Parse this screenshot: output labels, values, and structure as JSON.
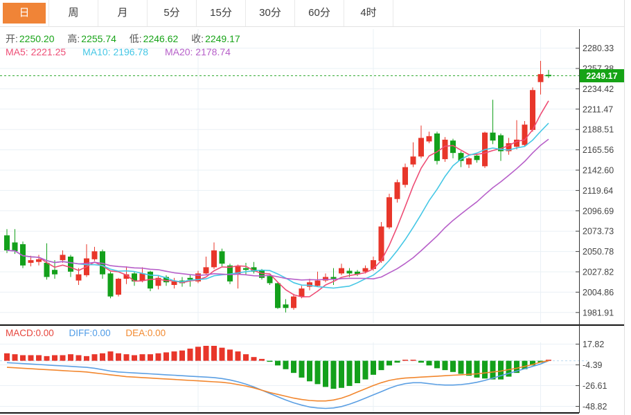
{
  "tabs": {
    "items": [
      {
        "label": "日",
        "active": true
      },
      {
        "label": "周",
        "active": false
      },
      {
        "label": "月",
        "active": false
      },
      {
        "label": "5分",
        "active": false
      },
      {
        "label": "15分",
        "active": false
      },
      {
        "label": "30分",
        "active": false
      },
      {
        "label": "60分",
        "active": false
      },
      {
        "label": "4时",
        "active": false
      }
    ]
  },
  "quote_legend": {
    "items": [
      {
        "label": "开:",
        "value": "2250.20"
      },
      {
        "label": "高:",
        "value": "2255.74"
      },
      {
        "label": "低:",
        "value": "2246.62"
      },
      {
        "label": "收:",
        "value": "2249.17"
      }
    ]
  },
  "ma_legend": {
    "items": [
      {
        "label": "MA5:",
        "value": "2221.25"
      },
      {
        "label": "MA10:",
        "value": "2196.78"
      },
      {
        "label": "MA20:",
        "value": "2178.74"
      }
    ]
  },
  "macd_legend": {
    "items": [
      {
        "label": "MACD:",
        "value": "0.00"
      },
      {
        "label": "DIFF:",
        "value": "0.00"
      },
      {
        "label": "DEA:",
        "value": "0.00"
      }
    ]
  },
  "colors": {
    "up": "#e8362a",
    "down": "#13a01b",
    "ma5": "#ee4d75",
    "ma10": "#45c7e5",
    "ma20": "#b75fc9",
    "diff_line": "#5b9fe3",
    "dea_line": "#f2862d",
    "macd_label": "#e6453c",
    "diff_label": "#4f9be6",
    "dea_label": "#f28a30",
    "quote_label": "#565656",
    "quote_value": "#17a317",
    "price_tag_bg": "#16a316",
    "price_line": "#33aa33",
    "tab_active_bg": "#f08437",
    "tab_active_text": "#ffffff",
    "grid": "#eaf0f6",
    "axis": "#333333",
    "axis_text": "#444444",
    "separator": "#151515",
    "zero_dash": "#bcd9ef"
  },
  "chart_data": [
    {
      "type": "candlestick",
      "title": "daily-kline-gold",
      "legend": [
        "MA5",
        "MA10",
        "MA20"
      ],
      "grid": true,
      "y_axis_side": "right",
      "y_ticks": [
        "2280.33",
        "2257.38",
        "2234.42",
        "2211.47",
        "2188.51",
        "2165.56",
        "2142.60",
        "2119.64",
        "2096.69",
        "2073.73",
        "2050.78",
        "2027.82",
        "2004.86",
        "1981.91"
      ],
      "y_range": [
        1975.0,
        2287.0
      ],
      "current_price": 2249.17,
      "current_price_label": "2249.17",
      "ma_periods": [
        5,
        10,
        20
      ],
      "ma_current": {
        "ma5": "2221.25",
        "ma10": "2196.78",
        "ma20": "2178.74"
      },
      "x_gridline_indices": [
        24,
        46,
        67
      ],
      "ohlc": [
        [
          2069,
          2076,
          2049,
          2052
        ],
        [
          2061,
          2076,
          2048,
          2051
        ],
        [
          2059,
          2062,
          2032,
          2035
        ],
        [
          2038,
          2046,
          2034,
          2041
        ],
        [
          2039,
          2047,
          2035,
          2042
        ],
        [
          2038,
          2060,
          2019,
          2022
        ],
        [
          2030,
          2041,
          2020,
          2025
        ],
        [
          2041,
          2052,
          2038,
          2047
        ],
        [
          2045,
          2047,
          2022,
          2028
        ],
        [
          2018,
          2032,
          2013,
          2025
        ],
        [
          2024,
          2059,
          2022,
          2043
        ],
        [
          2042,
          2056,
          2040,
          2051
        ],
        [
          2051,
          2053,
          2020,
          2025
        ],
        [
          2026,
          2028,
          1998,
          2000
        ],
        [
          2002,
          2021,
          2000,
          2020
        ],
        [
          2020,
          2034,
          2014,
          2025
        ],
        [
          2026,
          2028,
          2012,
          2017
        ],
        [
          2018,
          2033,
          2016,
          2026
        ],
        [
          2028,
          2029,
          2006,
          2009
        ],
        [
          2012,
          2023,
          2008,
          2021
        ],
        [
          2022,
          2024,
          2012,
          2016
        ],
        [
          2013,
          2021,
          2009,
          2017
        ],
        [
          2018,
          2022,
          2011,
          2015
        ],
        [
          2021,
          2025,
          2011,
          2019
        ],
        [
          2017,
          2029,
          2015,
          2026
        ],
        [
          2026,
          2045,
          2024,
          2033
        ],
        [
          2033,
          2061,
          2031,
          2052
        ],
        [
          2051,
          2054,
          2034,
          2037
        ],
        [
          2035,
          2037,
          2014,
          2017
        ],
        [
          2025,
          2036,
          2009,
          2034
        ],
        [
          2032,
          2038,
          2025,
          2030
        ],
        [
          2033,
          2039,
          2026,
          2028
        ],
        [
          2029,
          2031,
          2019,
          2021
        ],
        [
          2023,
          2024,
          2013,
          2015
        ],
        [
          2015,
          2016,
          1986,
          1987
        ],
        [
          1991,
          1997,
          1982,
          1987
        ],
        [
          1987,
          2003,
          1985,
          2000
        ],
        [
          2000,
          2012,
          1998,
          2009
        ],
        [
          2011,
          2020,
          2007,
          2016
        ],
        [
          2012,
          2028,
          2011,
          2018
        ],
        [
          2018,
          2026,
          2016,
          2022
        ],
        [
          2022,
          2032,
          2013,
          2020
        ],
        [
          2026,
          2037,
          2024,
          2032
        ],
        [
          2029,
          2032,
          2022,
          2026
        ],
        [
          2028,
          2030,
          2023,
          2025
        ],
        [
          2028,
          2035,
          2026,
          2032
        ],
        [
          2031,
          2045,
          2029,
          2041
        ],
        [
          2040,
          2084,
          2038,
          2079
        ],
        [
          2078,
          2116,
          2076,
          2112
        ],
        [
          2110,
          2132,
          2106,
          2129
        ],
        [
          2126,
          2150,
          2123,
          2146
        ],
        [
          2149,
          2174,
          2146,
          2158
        ],
        [
          2158,
          2193,
          2156,
          2179
        ],
        [
          2175,
          2186,
          2173,
          2181
        ],
        [
          2184,
          2186,
          2149,
          2153
        ],
        [
          2155,
          2180,
          2152,
          2177
        ],
        [
          2176,
          2178,
          2156,
          2162
        ],
        [
          2162,
          2164,
          2146,
          2153
        ],
        [
          2149,
          2157,
          2145,
          2156
        ],
        [
          2159,
          2161,
          2151,
          2154
        ],
        [
          2147,
          2186,
          2145,
          2185
        ],
        [
          2185,
          2222,
          2172,
          2176
        ],
        [
          2182,
          2184,
          2153,
          2164
        ],
        [
          2164,
          2179,
          2160,
          2173
        ],
        [
          2169,
          2199,
          2166,
          2177
        ],
        [
          2171,
          2198,
          2169,
          2194
        ],
        [
          2188,
          2236,
          2186,
          2233
        ],
        [
          2242,
          2266,
          2228,
          2251
        ],
        [
          2250.2,
          2255.74,
          2246.62,
          2249.17
        ]
      ]
    },
    {
      "type": "macd",
      "title": "macd-panel",
      "y_ticks": [
        "17.82",
        "-4.39",
        "-26.61",
        "-48.82"
      ],
      "y_tick_values": [
        17.82,
        -4.39,
        -26.61,
        -48.82
      ],
      "current": {
        "macd": "0.00",
        "diff": "0.00",
        "dea": "0.00"
      },
      "histogram": [
        8,
        7,
        6,
        6,
        6,
        5,
        6,
        6,
        7,
        6,
        5,
        7,
        8,
        10,
        8,
        7,
        6,
        7,
        7,
        8,
        9,
        10,
        11,
        13,
        15,
        16,
        16,
        14,
        12,
        10,
        7,
        4,
        2,
        -1,
        -5,
        -9,
        -13,
        -18,
        -22,
        -25,
        -28,
        -30,
        -29,
        -27,
        -24,
        -20,
        -15,
        -10,
        -5,
        -2,
        1,
        1,
        -2,
        -5,
        -8,
        -10,
        -12,
        -14,
        -16,
        -18,
        -19,
        -20,
        -20,
        -17,
        -13,
        -9,
        -5,
        -2,
        0
      ],
      "diff": [
        -2,
        -2.5,
        -3,
        -3.5,
        -4,
        -4.5,
        -5,
        -5.5,
        -6,
        -6.5,
        -7,
        -8,
        -9.5,
        -11,
        -12,
        -12.5,
        -13,
        -13.5,
        -14,
        -14.5,
        -15,
        -15.5,
        -16,
        -16.5,
        -17,
        -17.5,
        -18,
        -19,
        -20.5,
        -22.5,
        -25,
        -28,
        -31.5,
        -35,
        -38.5,
        -42,
        -45,
        -47.5,
        -49.5,
        -50.5,
        -51,
        -50.5,
        -49,
        -46.5,
        -43.5,
        -40,
        -36.5,
        -33,
        -29.5,
        -26.5,
        -24.5,
        -23.5,
        -23.5,
        -24.5,
        -25.5,
        -26,
        -26,
        -25.5,
        -24.5,
        -23,
        -21,
        -18.5,
        -16,
        -13.5,
        -11,
        -8.5,
        -6,
        -3.5,
        0
      ],
      "dea": [
        -7,
        -7.5,
        -8,
        -8.5,
        -9,
        -9.5,
        -10,
        -10.5,
        -11,
        -11.5,
        -12,
        -13,
        -14,
        -15,
        -16,
        -17,
        -17.5,
        -18,
        -18.5,
        -19,
        -19.5,
        -20,
        -20.5,
        -21,
        -21.5,
        -22,
        -22.5,
        -23,
        -24,
        -25.5,
        -27,
        -29,
        -31.5,
        -34,
        -36,
        -38,
        -40,
        -41.5,
        -42.5,
        -43,
        -43,
        -42,
        -40,
        -37,
        -33.5,
        -30,
        -26.5,
        -23.5,
        -21,
        -19.5,
        -18.5,
        -18,
        -17.5,
        -17,
        -16.5,
        -16,
        -15.5,
        -15,
        -14.5,
        -14,
        -13,
        -12,
        -11,
        -9.5,
        -8,
        -6,
        -4,
        -1.5,
        0
      ]
    }
  ]
}
